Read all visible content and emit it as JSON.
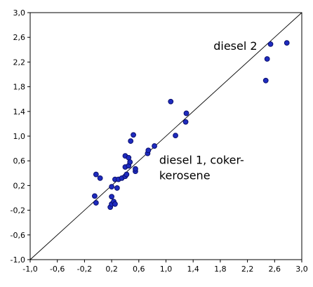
{
  "chart_data": {
    "type": "scatter",
    "title": "",
    "xlabel": "",
    "ylabel": "",
    "xlim": [
      -1.0,
      3.0
    ],
    "ylim": [
      -1.0,
      3.0
    ],
    "xticks": [
      "-1,0",
      "-0,6",
      "-0,2",
      "0,2",
      "0,6",
      "1,0",
      "1,4",
      "1,8",
      "2,2",
      "2,6",
      "3,0"
    ],
    "yticks": [
      "-1,0",
      "-0,6",
      "-0,2",
      "0,2",
      "0,6",
      "1,0",
      "1,4",
      "1,8",
      "2,2",
      "2,6",
      "3,0"
    ],
    "grid": false,
    "reference_line": {
      "from": [
        -1.0,
        -1.0
      ],
      "to": [
        3.0,
        3.0
      ]
    },
    "point_color": "#1e2bbf",
    "point_edge_color": "#0a0f6e",
    "annotations": [
      {
        "lines": [
          "diesel 2"
        ],
        "x": 1.7,
        "y": 2.4
      },
      {
        "lines": [
          "diesel 1, coker-",
          "kerosene"
        ],
        "x": 0.9,
        "y": 0.55
      }
    ],
    "points": [
      {
        "x": -0.05,
        "y": 0.03
      },
      {
        "x": -0.03,
        "y": -0.08
      },
      {
        "x": -0.03,
        "y": 0.38
      },
      {
        "x": 0.03,
        "y": 0.32
      },
      {
        "x": 0.18,
        "y": -0.15
      },
      {
        "x": 0.2,
        "y": -0.1
      },
      {
        "x": 0.2,
        "y": 0.02
      },
      {
        "x": 0.2,
        "y": 0.18
      },
      {
        "x": 0.23,
        "y": -0.06
      },
      {
        "x": 0.25,
        "y": -0.1
      },
      {
        "x": 0.25,
        "y": 0.3
      },
      {
        "x": 0.28,
        "y": 0.16
      },
      {
        "x": 0.3,
        "y": 0.3
      },
      {
        "x": 0.35,
        "y": 0.32
      },
      {
        "x": 0.4,
        "y": 0.35
      },
      {
        "x": 0.42,
        "y": 0.38
      },
      {
        "x": 0.4,
        "y": 0.5
      },
      {
        "x": 0.4,
        "y": 0.68
      },
      {
        "x": 0.45,
        "y": 0.52
      },
      {
        "x": 0.45,
        "y": 0.65
      },
      {
        "x": 0.47,
        "y": 0.58
      },
      {
        "x": 0.48,
        "y": 0.92
      },
      {
        "x": 0.52,
        "y": 1.02
      },
      {
        "x": 0.55,
        "y": 0.43
      },
      {
        "x": 0.55,
        "y": 0.47
      },
      {
        "x": 0.73,
        "y": 0.72
      },
      {
        "x": 0.74,
        "y": 0.77
      },
      {
        "x": 0.83,
        "y": 0.84
      },
      {
        "x": 1.07,
        "y": 1.56
      },
      {
        "x": 1.14,
        "y": 1.01
      },
      {
        "x": 1.29,
        "y": 1.23
      },
      {
        "x": 1.3,
        "y": 1.37
      },
      {
        "x": 2.47,
        "y": 1.9
      },
      {
        "x": 2.49,
        "y": 2.25
      },
      {
        "x": 2.54,
        "y": 2.49
      },
      {
        "x": 2.78,
        "y": 2.51
      }
    ]
  }
}
